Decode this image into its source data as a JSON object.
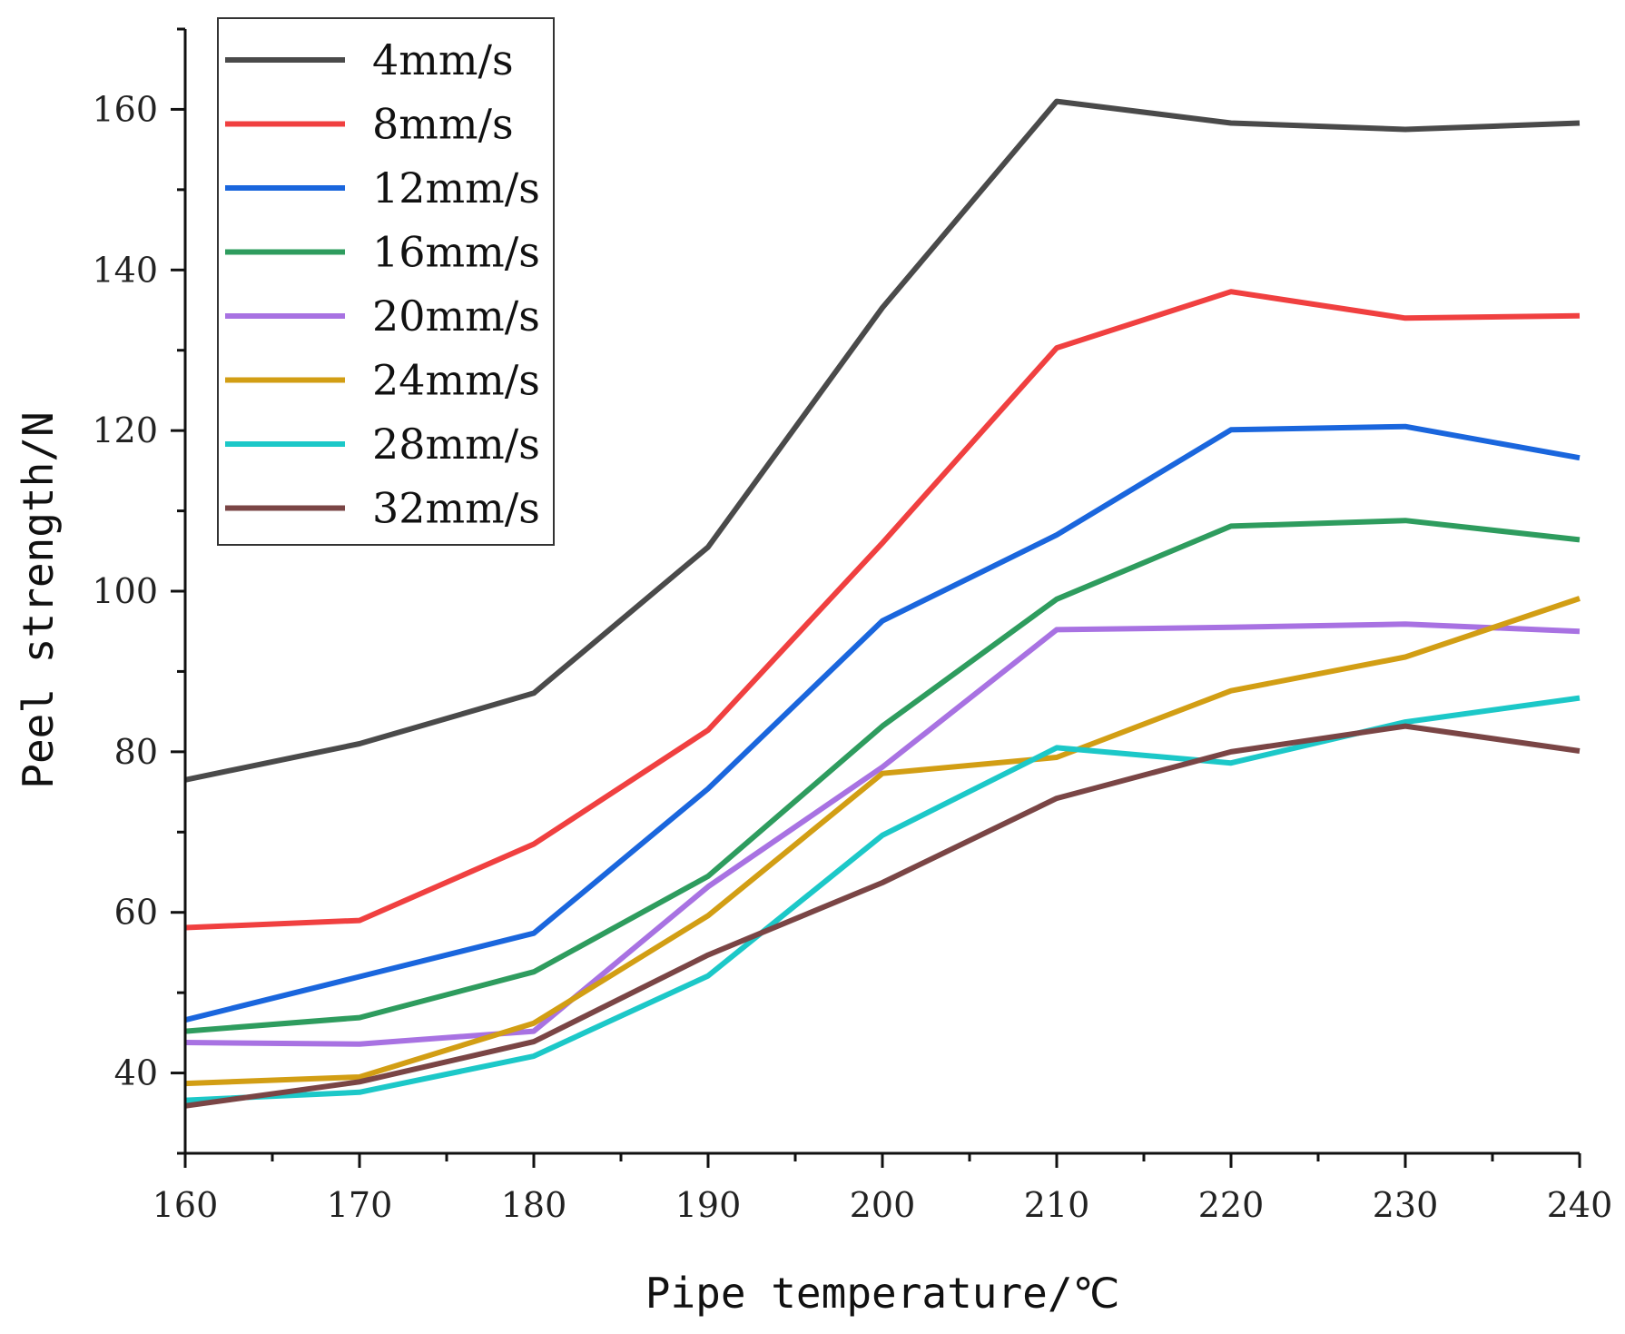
{
  "chart_data": {
    "type": "line",
    "title": "",
    "xlabel": "Pipe temperature/℃",
    "ylabel": "Peel strength/N",
    "xlim": [
      160,
      240
    ],
    "ylim": [
      30,
      170
    ],
    "x": [
      160,
      170,
      180,
      190,
      200,
      210,
      220,
      230,
      240
    ],
    "x_ticks": [
      "160",
      "170",
      "180",
      "190",
      "200",
      "210",
      "220",
      "230",
      "240"
    ],
    "y_ticks": [
      "40",
      "60",
      "80",
      "100",
      "120",
      "140",
      "160"
    ],
    "grid": false,
    "legend_position": "top-left",
    "series": [
      {
        "name": "4mm/s",
        "color": "#4a4a4a",
        "values": [
          76.5,
          81,
          87.3,
          105.5,
          135.3,
          161,
          158.3,
          157.5,
          158.3
        ]
      },
      {
        "name": "8mm/s",
        "color": "#f04040",
        "values": [
          58.1,
          59,
          68.5,
          82.7,
          106,
          130.3,
          137.3,
          134,
          134.3
        ]
      },
      {
        "name": "12mm/s",
        "color": "#1a66dd",
        "values": [
          46.6,
          52,
          57.4,
          75.4,
          96.3,
          107,
          120.1,
          120.5,
          116.6
        ]
      },
      {
        "name": "16mm/s",
        "color": "#2e9c5e",
        "values": [
          45.2,
          46.9,
          52.6,
          64.5,
          83.2,
          99,
          108.1,
          108.8,
          106.4
        ]
      },
      {
        "name": "20mm/s",
        "color": "#a872e2",
        "values": [
          43.8,
          43.6,
          45.2,
          63.2,
          78.1,
          95.2,
          95.5,
          95.9,
          95
        ]
      },
      {
        "name": "24mm/s",
        "color": "#d29e14",
        "values": [
          38.7,
          39.5,
          46.2,
          59.6,
          77.3,
          79.3,
          87.6,
          91.8,
          99.1
        ]
      },
      {
        "name": "28mm/s",
        "color": "#1cc8c8",
        "values": [
          36.6,
          37.6,
          42.1,
          52.1,
          69.6,
          80.5,
          78.6,
          83.7,
          86.7
        ]
      },
      {
        "name": "32mm/s",
        "color": "#7a4545",
        "values": [
          35.9,
          38.9,
          43.9,
          54.7,
          63.7,
          74.2,
          80,
          83.2,
          80.1
        ]
      }
    ]
  }
}
